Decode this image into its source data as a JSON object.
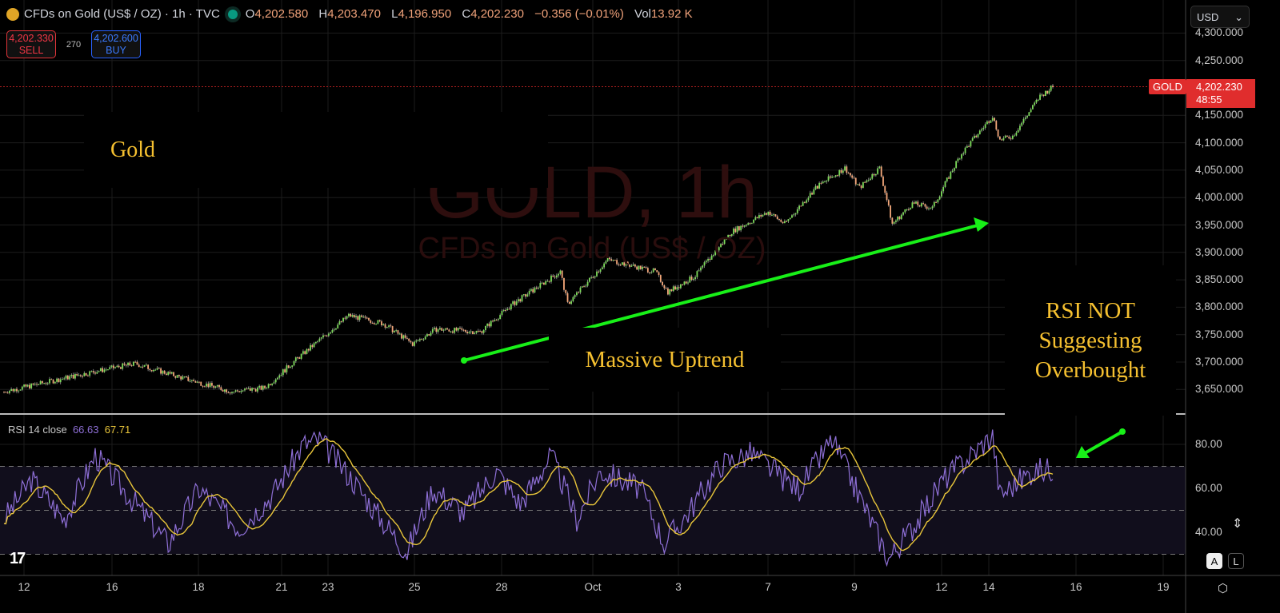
{
  "header": {
    "title": "CFDs on Gold (US$ / OZ) · 1h · TVC",
    "ohlc": [
      {
        "k": "O",
        "v": "4,202.580"
      },
      {
        "k": "H",
        "v": "4,203.470"
      },
      {
        "k": "L",
        "v": "4,196.950"
      },
      {
        "k": "C",
        "v": "4,202.230"
      }
    ],
    "change": "−0.356 (−0.01%)",
    "vol_label": "Vol",
    "vol": "13.92 K"
  },
  "trade": {
    "sell_price": "4,202.330",
    "sell_label": "SELL",
    "spread": "270",
    "buy_price": "4,202.600",
    "buy_label": "BUY"
  },
  "currency": "USD",
  "price_tag": {
    "symbol": "GOLD",
    "price": "4,202.230",
    "countdown": "48:55"
  },
  "watermark": {
    "title": "GOLD, 1h",
    "subtitle": "CFDs on Gold (US$ / OZ)"
  },
  "annotations": {
    "gold": "Gold",
    "uptrend": "Massive Uptrend",
    "rsi_lines": [
      "RSI NOT",
      "Suggesting",
      "Overbought"
    ]
  },
  "rsi_legend": {
    "name": "RSI 14 close",
    "rsi": "66.63",
    "ma": "67.71"
  },
  "scale_buttons": {
    "auto": "A",
    "log": "L"
  },
  "colors": {
    "up": "#7ddc5a",
    "down": "#f5a87a",
    "rsi": "#8e6fd6",
    "rsi_ma": "#e8c53a",
    "arrow": "#18f018",
    "annotation": "#f5c030",
    "last_price": "#e02d2d"
  },
  "chart_data": [
    {
      "type": "candlestick",
      "title": "CFDs on Gold (US$ / OZ) · 1h · TVC",
      "x_unit": "hourly bar index",
      "ylim": [
        3610,
        4310
      ],
      "y_ticks": [
        "4,300.000",
        "4,250.000",
        "4,150.000",
        "4,100.000",
        "4,050.000",
        "4,000.000",
        "3,950.000",
        "3,900.000",
        "3,850.000",
        "3,800.000",
        "3,750.000",
        "3,700.000",
        "3,650.000"
      ],
      "x_ticks": [
        "12",
        "16",
        "18",
        "21",
        "23",
        "25",
        "28",
        "Oct",
        "3",
        "7",
        "9",
        "12",
        "14",
        "16",
        "19"
      ],
      "last_price": 4202.23,
      "close_path": [
        [
          0,
          3646
        ],
        [
          50,
          3683
        ],
        [
          72,
          3697
        ],
        [
          101,
          3668
        ],
        [
          125,
          3646
        ],
        [
          143,
          3653
        ],
        [
          160,
          3704
        ],
        [
          189,
          3785
        ],
        [
          208,
          3770
        ],
        [
          224,
          3733
        ],
        [
          237,
          3760
        ],
        [
          261,
          3755
        ],
        [
          279,
          3806
        ],
        [
          305,
          3865
        ],
        [
          309,
          3806
        ],
        [
          331,
          3887
        ],
        [
          357,
          3865
        ],
        [
          364,
          3828
        ],
        [
          379,
          3857
        ],
        [
          399,
          3938
        ],
        [
          419,
          3974
        ],
        [
          428,
          3952
        ],
        [
          445,
          4018
        ],
        [
          461,
          4054
        ],
        [
          469,
          4018
        ],
        [
          480,
          4054
        ],
        [
          487,
          3952
        ],
        [
          498,
          3989
        ],
        [
          509,
          3981
        ],
        [
          524,
          4076
        ],
        [
          542,
          4149
        ],
        [
          546,
          4105
        ],
        [
          553,
          4112
        ],
        [
          568,
          4185
        ],
        [
          575,
          4202
        ]
      ]
    },
    {
      "type": "line",
      "title": "RSI 14 close",
      "ylim": [
        26,
        90
      ],
      "y_ticks": [
        "80.00",
        "60.00",
        "40.00"
      ],
      "bands": [
        30,
        50,
        70
      ],
      "series": [
        {
          "name": "RSI",
          "values": [
            [
              0,
              46
            ],
            [
              15,
              64
            ],
            [
              33,
              46
            ],
            [
              50,
              75
            ],
            [
              68,
              57
            ],
            [
              90,
              35
            ],
            [
              107,
              60
            ],
            [
              129,
              42
            ],
            [
              147,
              57
            ],
            [
              164,
              80
            ],
            [
              173,
              82
            ],
            [
              191,
              64
            ],
            [
              204,
              49
            ],
            [
              221,
              31
            ],
            [
              235,
              60
            ],
            [
              252,
              49
            ],
            [
              270,
              68
            ],
            [
              283,
              53
            ],
            [
              300,
              75
            ],
            [
              314,
              46
            ],
            [
              327,
              68
            ],
            [
              349,
              60
            ],
            [
              362,
              35
            ],
            [
              375,
              49
            ],
            [
              393,
              71
            ],
            [
              410,
              76
            ],
            [
              428,
              64
            ],
            [
              436,
              60
            ],
            [
              454,
              82
            ],
            [
              471,
              53
            ],
            [
              485,
              28
            ],
            [
              498,
              42
            ],
            [
              515,
              64
            ],
            [
              542,
              84
            ],
            [
              546,
              57
            ],
            [
              564,
              68
            ],
            [
              575,
              69
            ]
          ]
        }
      ]
    }
  ]
}
